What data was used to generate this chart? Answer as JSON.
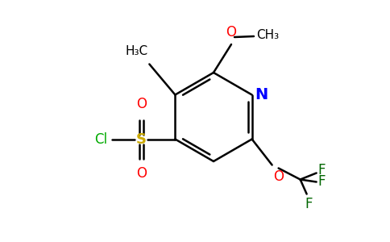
{
  "bg_color": "#ffffff",
  "bond_color": "#000000",
  "ring_color": "#000000",
  "atom_colors": {
    "O": "#ff0000",
    "N": "#0000ff",
    "S": "#ccaa00",
    "Cl": "#00aa00",
    "F": "#006600",
    "C": "#000000"
  },
  "figsize": [
    4.84,
    3.0
  ],
  "dpi": 100
}
